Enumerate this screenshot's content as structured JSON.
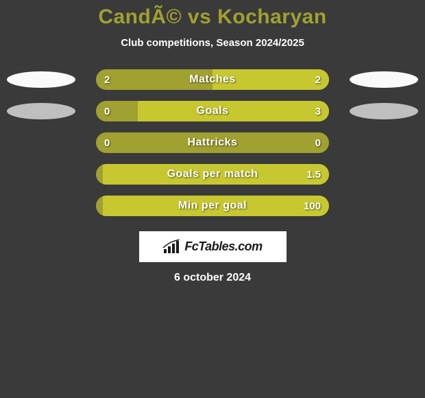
{
  "title": "CandÃ© vs Kocharyan",
  "subtitle": "Club competitions, Season 2024/2025",
  "colors": {
    "background": "#3a3a3a",
    "title_color": "#a0a130",
    "text_color": "#ffffff",
    "left_fill": "#a0a130",
    "right_fill": "#c7c830",
    "ellipse_white": "#fafafa",
    "ellipse_grey": "#bfbfbf"
  },
  "bar_track_width": 340,
  "stats": [
    {
      "label": "Matches",
      "left_value": "2",
      "right_value": "2",
      "left_pct": 50,
      "right_pct": 50,
      "ellipse_left_color": "#fafafa",
      "ellipse_right_color": "#fafafa",
      "show_ellipses": true
    },
    {
      "label": "Goals",
      "left_value": "0",
      "right_value": "3",
      "left_pct": 18,
      "right_pct": 82,
      "ellipse_left_color": "#bfbfbf",
      "ellipse_right_color": "#bfbfbf",
      "show_ellipses": true
    },
    {
      "label": "Hattricks",
      "left_value": "0",
      "right_value": "0",
      "left_pct": 100,
      "right_pct": 0,
      "show_ellipses": false
    },
    {
      "label": "Goals per match",
      "left_value": "",
      "right_value": "1.5",
      "left_pct": 3,
      "right_pct": 97,
      "show_ellipses": false
    },
    {
      "label": "Min per goal",
      "left_value": "",
      "right_value": "100",
      "left_pct": 3,
      "right_pct": 97,
      "show_ellipses": false
    }
  ],
  "footer": {
    "brand": "FcTables.com",
    "date": "6 october 2024"
  }
}
